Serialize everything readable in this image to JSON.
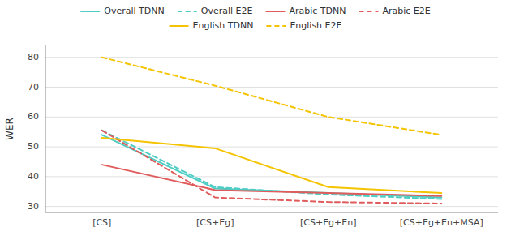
{
  "chart_data": {
    "type": "line",
    "categories": [
      "[CS]",
      "[CS+Eg]",
      "[CS+Eg+En]",
      "[CS+Eg+En+MSA]"
    ],
    "series": [
      {
        "name": "Overall TDNN",
        "color": "#4ecdc4",
        "line_style": "solid",
        "values": [
          54.0,
          36.0,
          34.5,
          33.0
        ]
      },
      {
        "name": "Overall E2E",
        "color": "#4ecdc4",
        "line_style": "dashed",
        "values": [
          55.5,
          36.5,
          34.0,
          32.5
        ]
      },
      {
        "name": "Arabic TDNN",
        "color": "#e05c5c",
        "line_style": "solid",
        "values": [
          44.0,
          35.5,
          34.5,
          33.5
        ]
      },
      {
        "name": "Arabic E2E",
        "color": "#e05c5c",
        "line_style": "dashed",
        "values": [
          55.5,
          33.0,
          31.5,
          31.0
        ]
      },
      {
        "name": "English TDNN",
        "color": "#f5c400",
        "line_style": "solid",
        "values": [
          53.0,
          49.5,
          36.5,
          34.5
        ]
      },
      {
        "name": "English E2E",
        "color": "#f5c400",
        "line_style": "dashed",
        "values": [
          80.0,
          70.5,
          60.0,
          54.0
        ]
      }
    ],
    "ylabel": "WER",
    "ylim": [
      28,
      84
    ],
    "yticks": [
      30,
      40,
      50,
      60,
      70,
      80
    ],
    "grid": true,
    "legend": "top"
  }
}
